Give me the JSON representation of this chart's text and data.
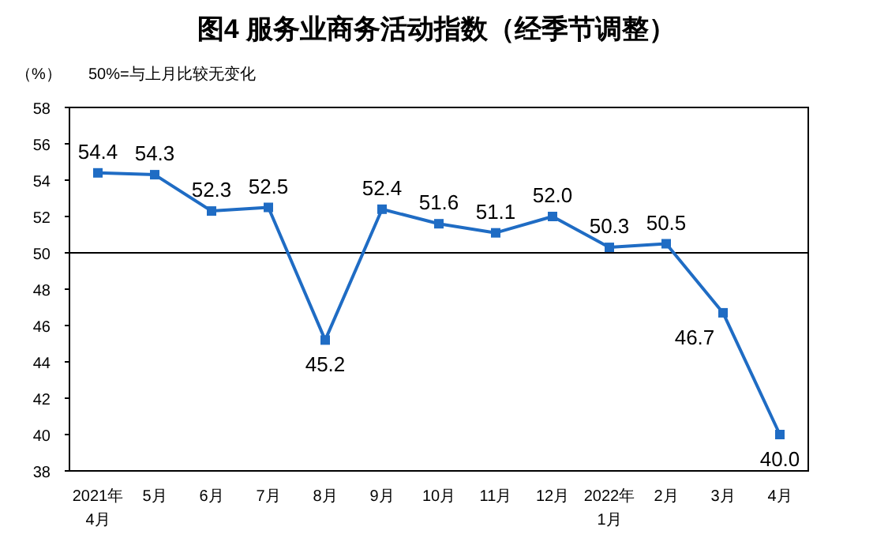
{
  "chart_data": {
    "type": "line",
    "title": "图4  服务业商务活动指数（经季节调整）",
    "ylabel": "（%）",
    "annotations": [
      "50%=与上月比较无变化"
    ],
    "categories": [
      "2021年\n4月",
      "5月",
      "6月",
      "7月",
      "8月",
      "9月",
      "10月",
      "11月",
      "12月",
      "2022年\n1月",
      "2月",
      "3月",
      "4月"
    ],
    "series": [
      {
        "color": "#1f6cc4",
        "values": [
          54.4,
          54.3,
          52.3,
          52.5,
          45.2,
          52.4,
          51.6,
          51.1,
          52.0,
          50.3,
          50.5,
          46.7,
          40.0
        ],
        "value_labels": [
          "54.4",
          "54.3",
          "52.3",
          "52.5",
          "45.2",
          "52.4",
          "51.6",
          "51.1",
          "52.0",
          "50.3",
          "50.5",
          "46.7",
          "40.0"
        ]
      }
    ],
    "ylim": [
      38,
      58
    ],
    "yticks": [
      38,
      40,
      42,
      44,
      46,
      48,
      50,
      52,
      54,
      56,
      58
    ],
    "ref_lines": [
      {
        "axis": "y",
        "value": 50,
        "color": "#000000"
      }
    ],
    "marker": "square"
  }
}
